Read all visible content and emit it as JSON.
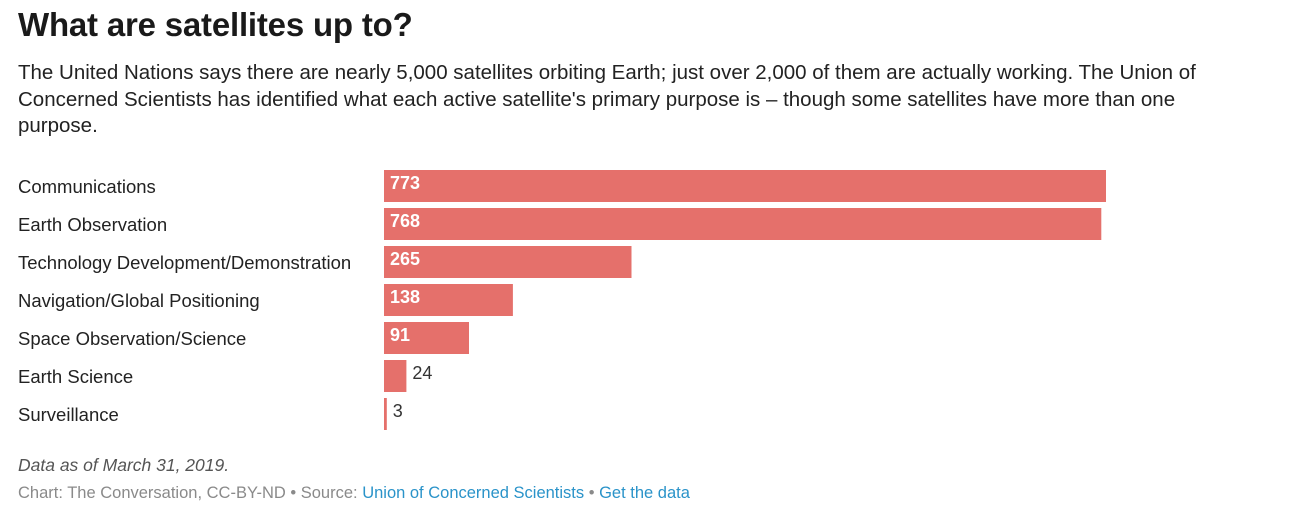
{
  "title": "What are satellites up to?",
  "subtitle": "The United Nations says there are nearly 5,000 satellites orbiting Earth; just over 2,000 of them are actually working. The Union of Concerned Scientists has identified what each active satellite's primary purpose is – though some satellites have more than one purpose.",
  "note": "Data as of March 31, 2019.",
  "credits": {
    "chart_label": "Chart: The Conversation, CC-BY-ND",
    "separator": " • ",
    "source_prefix": "Source: ",
    "source_link": "Union of Concerned Scientists",
    "get_data_link": "Get the data"
  },
  "colors": {
    "bar": "#e5706b",
    "label_inside": "#ffffff",
    "label_outside": "#333333",
    "category_text": "#222222"
  },
  "chart_data": {
    "type": "bar",
    "orientation": "horizontal",
    "categories": [
      "Communications",
      "Earth Observation",
      "Technology Development/Demonstration",
      "Navigation/Global Positioning",
      "Space Observation/Science",
      "Earth Science",
      "Surveillance"
    ],
    "values": [
      773,
      768,
      265,
      138,
      91,
      24,
      3
    ],
    "xlim": [
      0,
      773
    ],
    "grid": false,
    "legend": "none",
    "data_labels": true
  }
}
